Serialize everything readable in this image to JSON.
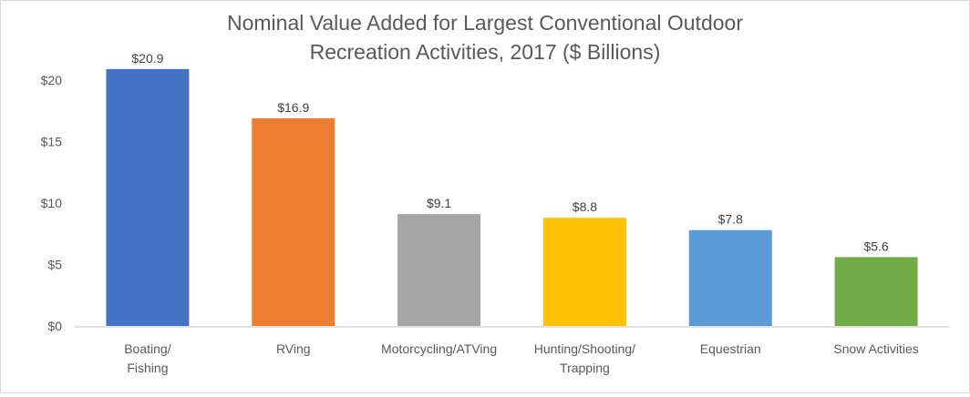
{
  "chart_data": {
    "type": "bar",
    "title_lines": [
      "Nominal Value Added for Largest Conventional Outdoor",
      "Recreation Activities, 2017 ($ Billions)"
    ],
    "categories": [
      [
        "Boating/",
        "Fishing"
      ],
      [
        "RVing"
      ],
      [
        "Motorcycling/ATVing"
      ],
      [
        "Hunting/Shooting/",
        "Trapping"
      ],
      [
        "Equestrian"
      ],
      [
        "Snow Activities"
      ]
    ],
    "values": [
      20.9,
      16.9,
      9.1,
      8.8,
      7.8,
      5.6
    ],
    "data_labels": [
      "$20.9",
      "$16.9",
      "$9.1",
      "$8.8",
      "$7.8",
      "$5.6"
    ],
    "colors": [
      "#4472C4",
      "#ED7D31",
      "#A5A5A5",
      "#FFC000",
      "#5B9BD5",
      "#70AD47"
    ],
    "yticks": [
      0,
      5,
      10,
      15,
      20
    ],
    "ytick_labels": [
      "$0",
      "$5",
      "$10",
      "$15",
      "$20"
    ],
    "ylim": [
      0,
      20
    ],
    "grid": false,
    "legend": "none",
    "xlabel": "",
    "ylabel": ""
  }
}
